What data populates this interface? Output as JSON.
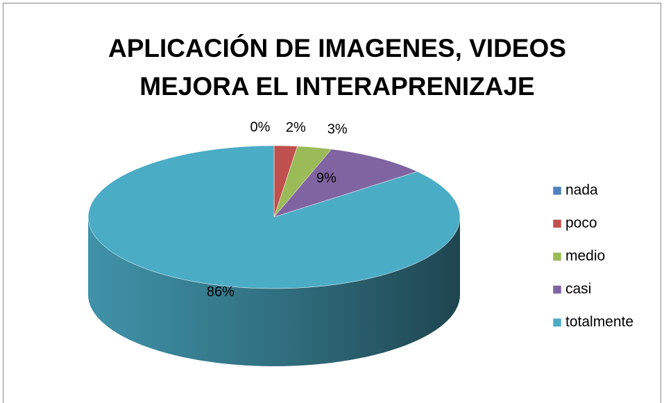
{
  "chart_data": {
    "type": "pie3d",
    "title": [
      "APLICACIÓN DE IMAGENES, VIDEOS",
      "MEJORA EL INTERAPRENIZAJE"
    ],
    "categories": [
      "nada",
      "poco",
      "medio",
      "casi",
      "totalmente"
    ],
    "values": [
      0,
      2,
      3,
      9,
      86
    ],
    "value_labels": [
      "0%",
      "2%",
      "3%",
      "9%",
      "86%"
    ],
    "colors": [
      "#4F81BD",
      "#C0504D",
      "#9BBB59",
      "#8064A2",
      "#4BACC6"
    ],
    "legend": "right"
  }
}
